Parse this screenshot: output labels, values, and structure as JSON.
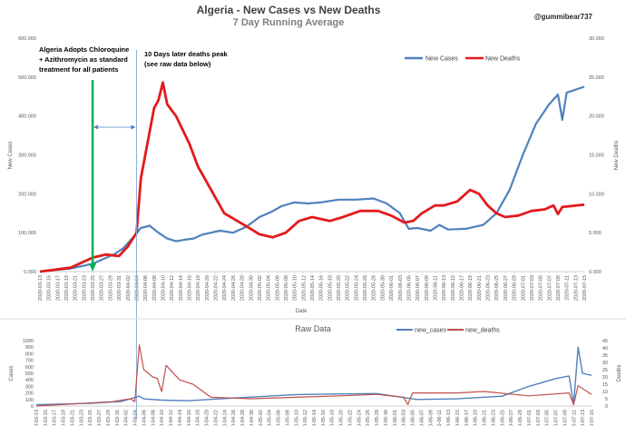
{
  "page": {
    "title": "Algeria - New Cases vs New Deaths",
    "subtitle": "7 Day Running Average",
    "handle": "@gummibear737",
    "colors": {
      "cases": "#4f81bd",
      "deaths": "#e31a1c",
      "raw_cases": "#4f81bd",
      "raw_deaths": "#c0504d",
      "arrow": "#00b050"
    }
  },
  "annotations": {
    "left": [
      "Algeria Adopts Chloroquine",
      "+ Azithromycin as standard",
      "treatment for all patients"
    ],
    "right": [
      "10 Days later deaths peak",
      "(see raw data below)"
    ]
  },
  "chart_data": [
    {
      "type": "line",
      "title": "Algeria - New Cases vs New Deaths",
      "subtitle": "7 Day Running Average",
      "xlabel": "Date",
      "ylabel": "New Cases",
      "y2label": "New Deaths",
      "ylim": [
        0,
        600000
      ],
      "y2lim": [
        0,
        30000
      ],
      "yticks": [
        "0.000",
        "100.000",
        "200.000",
        "300.000",
        "400.000",
        "500.000",
        "600.000"
      ],
      "y2ticks": [
        "0.000",
        "5.000",
        "10.000",
        "15.000",
        "20.000",
        "25.000",
        "30.000"
      ],
      "x_start": "2020-03-13",
      "x_end": "2020-07-15",
      "xtick_labels": [
        "2020-03-13",
        "2020-03-15",
        "2020-03-17",
        "2020-03-19",
        "2020-03-21",
        "2020-03-23",
        "2020-03-25",
        "2020-03-27",
        "2020-03-29",
        "2020-03-31",
        "2020-04-02",
        "2020-04-04",
        "2020-04-06",
        "2020-04-08",
        "2020-04-10",
        "2020-04-12",
        "2020-04-14",
        "2020-04-16",
        "2020-04-18",
        "2020-04-20",
        "2020-04-22",
        "2020-04-24",
        "2020-04-26",
        "2020-04-28",
        "2020-04-30",
        "2020-05-02",
        "2020-05-04",
        "2020-05-06",
        "2020-05-08",
        "2020-05-10",
        "2020-05-12",
        "2020-05-14",
        "2020-05-16",
        "2020-05-18",
        "2020-05-20",
        "2020-05-22",
        "2020-05-24",
        "2020-05-26",
        "2020-05-28",
        "2020-05-30",
        "2020-06-01",
        "2020-06-03",
        "2020-06-05",
        "2020-06-07",
        "2020-06-09",
        "2020-06-11",
        "2020-06-13",
        "2020-06-15",
        "2020-06-17",
        "2020-06-19",
        "2020-06-21",
        "2020-06-23",
        "2020-06-25",
        "2020-06-27",
        "2020-06-29",
        "2020-07-01",
        "2020-07-03",
        "2020-07-05",
        "2020-07-07",
        "2020-07-09",
        "2020-07-11",
        "2020-07-13",
        "2020-07-15"
      ],
      "legend_position": "top-right",
      "series": [
        {
          "name": "New Cases",
          "axis": "left",
          "points": [
            [
              "2020-03-13",
              0
            ],
            [
              "2020-03-20",
              8000
            ],
            [
              "2020-03-25",
              20000
            ],
            [
              "2020-03-30",
              45000
            ],
            [
              "2020-04-01",
              60000
            ],
            [
              "2020-04-03",
              85000
            ],
            [
              "2020-04-05",
              112000
            ],
            [
              "2020-04-07",
              118000
            ],
            [
              "2020-04-09",
              100000
            ],
            [
              "2020-04-11",
              85000
            ],
            [
              "2020-04-13",
              78000
            ],
            [
              "2020-04-15",
              82000
            ],
            [
              "2020-04-17",
              85000
            ],
            [
              "2020-04-19",
              95000
            ],
            [
              "2020-04-23",
              105000
            ],
            [
              "2020-04-26",
              100000
            ],
            [
              "2020-04-29",
              115000
            ],
            [
              "2020-05-02",
              140000
            ],
            [
              "2020-05-05",
              155000
            ],
            [
              "2020-05-07",
              168000
            ],
            [
              "2020-05-10",
              178000
            ],
            [
              "2020-05-13",
              175000
            ],
            [
              "2020-05-16",
              178000
            ],
            [
              "2020-05-20",
              185000
            ],
            [
              "2020-05-24",
              185000
            ],
            [
              "2020-05-28",
              188000
            ],
            [
              "2020-05-31",
              175000
            ],
            [
              "2020-06-03",
              150000
            ],
            [
              "2020-06-05",
              110000
            ],
            [
              "2020-06-07",
              112000
            ],
            [
              "2020-06-10",
              105000
            ],
            [
              "2020-06-12",
              120000
            ],
            [
              "2020-06-14",
              108000
            ],
            [
              "2020-06-18",
              110000
            ],
            [
              "2020-06-22",
              120000
            ],
            [
              "2020-06-25",
              150000
            ],
            [
              "2020-06-28",
              210000
            ],
            [
              "2020-07-01",
              300000
            ],
            [
              "2020-07-04",
              380000
            ],
            [
              "2020-07-07",
              430000
            ],
            [
              "2020-07-09",
              455000
            ],
            [
              "2020-07-10",
              390000
            ],
            [
              "2020-07-11",
              460000
            ],
            [
              "2020-07-15",
              475000
            ]
          ]
        },
        {
          "name": "New Deaths",
          "axis": "right",
          "points": [
            [
              "2020-03-13",
              0
            ],
            [
              "2020-03-20",
              500
            ],
            [
              "2020-03-25",
              1800
            ],
            [
              "2020-03-28",
              2200
            ],
            [
              "2020-03-31",
              2000
            ],
            [
              "2020-04-02",
              3200
            ],
            [
              "2020-04-04",
              5000
            ],
            [
              "2020-04-05",
              12000
            ],
            [
              "2020-04-07",
              18000
            ],
            [
              "2020-04-08",
              21000
            ],
            [
              "2020-04-09",
              22000
            ],
            [
              "2020-04-10",
              24300
            ],
            [
              "2020-04-11",
              21500
            ],
            [
              "2020-04-13",
              20000
            ],
            [
              "2020-04-16",
              16500
            ],
            [
              "2020-04-18",
              13500
            ],
            [
              "2020-04-20",
              11500
            ],
            [
              "2020-04-22",
              9500
            ],
            [
              "2020-04-24",
              7500
            ],
            [
              "2020-04-27",
              6500
            ],
            [
              "2020-04-30",
              5500
            ],
            [
              "2020-05-02",
              4800
            ],
            [
              "2020-05-05",
              4400
            ],
            [
              "2020-05-08",
              5000
            ],
            [
              "2020-05-11",
              6500
            ],
            [
              "2020-05-14",
              7000
            ],
            [
              "2020-05-18",
              6500
            ],
            [
              "2020-05-21",
              7000
            ],
            [
              "2020-05-25",
              7800
            ],
            [
              "2020-05-29",
              7800
            ],
            [
              "2020-06-01",
              7200
            ],
            [
              "2020-06-04",
              6300
            ],
            [
              "2020-06-06",
              6500
            ],
            [
              "2020-06-08",
              7500
            ],
            [
              "2020-06-11",
              8500
            ],
            [
              "2020-06-13",
              8500
            ],
            [
              "2020-06-16",
              9000
            ],
            [
              "2020-06-19",
              10500
            ],
            [
              "2020-06-21",
              10000
            ],
            [
              "2020-06-23",
              8500
            ],
            [
              "2020-06-25",
              7500
            ],
            [
              "2020-06-27",
              7000
            ],
            [
              "2020-06-30",
              7200
            ],
            [
              "2020-07-03",
              7800
            ],
            [
              "2020-07-06",
              8000
            ],
            [
              "2020-07-08",
              8500
            ],
            [
              "2020-07-09",
              7400
            ],
            [
              "2020-07-10",
              8300
            ],
            [
              "2020-07-15",
              8600
            ]
          ]
        }
      ]
    },
    {
      "type": "line",
      "title": "Raw Data",
      "ylabel": "Cases",
      "y2label": "Deaths",
      "ylim": [
        0,
        1000
      ],
      "y2lim": [
        0,
        45
      ],
      "yticks": [
        "0",
        "100",
        "200",
        "300",
        "400",
        "500",
        "600",
        "700",
        "800",
        "900",
        "1000"
      ],
      "y2ticks": [
        "0",
        "5",
        "10",
        "15",
        "20",
        "25",
        "30",
        "35",
        "40",
        "45"
      ],
      "legend_position": "top-right",
      "series": [
        {
          "name": "new_cases",
          "axis": "left",
          "points": [
            [
              "2020-03-13",
              20
            ],
            [
              "2020-03-25",
              40
            ],
            [
              "2020-04-01",
              70
            ],
            [
              "2020-04-05",
              150
            ],
            [
              "2020-04-06",
              110
            ],
            [
              "2020-04-10",
              90
            ],
            [
              "2020-04-16",
              80
            ],
            [
              "2020-04-23",
              110
            ],
            [
              "2020-05-01",
              140
            ],
            [
              "2020-05-10",
              175
            ],
            [
              "2020-05-20",
              185
            ],
            [
              "2020-05-28",
              190
            ],
            [
              "2020-06-03",
              130
            ],
            [
              "2020-06-06",
              100
            ],
            [
              "2020-06-15",
              110
            ],
            [
              "2020-06-25",
              150
            ],
            [
              "2020-07-01",
              300
            ],
            [
              "2020-07-07",
              420
            ],
            [
              "2020-07-10",
              460
            ],
            [
              "2020-07-11",
              20
            ],
            [
              "2020-07-12",
              900
            ],
            [
              "2020-07-13",
              500
            ],
            [
              "2020-07-15",
              470
            ]
          ]
        },
        {
          "name": "new_deaths",
          "axis": "right",
          "points": [
            [
              "2020-03-13",
              0
            ],
            [
              "2020-03-30",
              3
            ],
            [
              "2020-04-03",
              5
            ],
            [
              "2020-04-04",
              3
            ],
            [
              "2020-04-05",
              42
            ],
            [
              "2020-04-06",
              25
            ],
            [
              "2020-04-08",
              20
            ],
            [
              "2020-04-09",
              19
            ],
            [
              "2020-04-10",
              10
            ],
            [
              "2020-04-11",
              28
            ],
            [
              "2020-04-14",
              18
            ],
            [
              "2020-04-17",
              15
            ],
            [
              "2020-04-21",
              6
            ],
            [
              "2020-04-30",
              5
            ],
            [
              "2020-05-10",
              6
            ],
            [
              "2020-05-20",
              7
            ],
            [
              "2020-05-28",
              8
            ],
            [
              "2020-06-03",
              6
            ],
            [
              "2020-06-04",
              1
            ],
            [
              "2020-06-05",
              9
            ],
            [
              "2020-06-15",
              9
            ],
            [
              "2020-06-21",
              10
            ],
            [
              "2020-07-01",
              7
            ],
            [
              "2020-07-10",
              9
            ],
            [
              "2020-07-11",
              1
            ],
            [
              "2020-07-12",
              14
            ],
            [
              "2020-07-15",
              8
            ]
          ]
        }
      ]
    }
  ]
}
